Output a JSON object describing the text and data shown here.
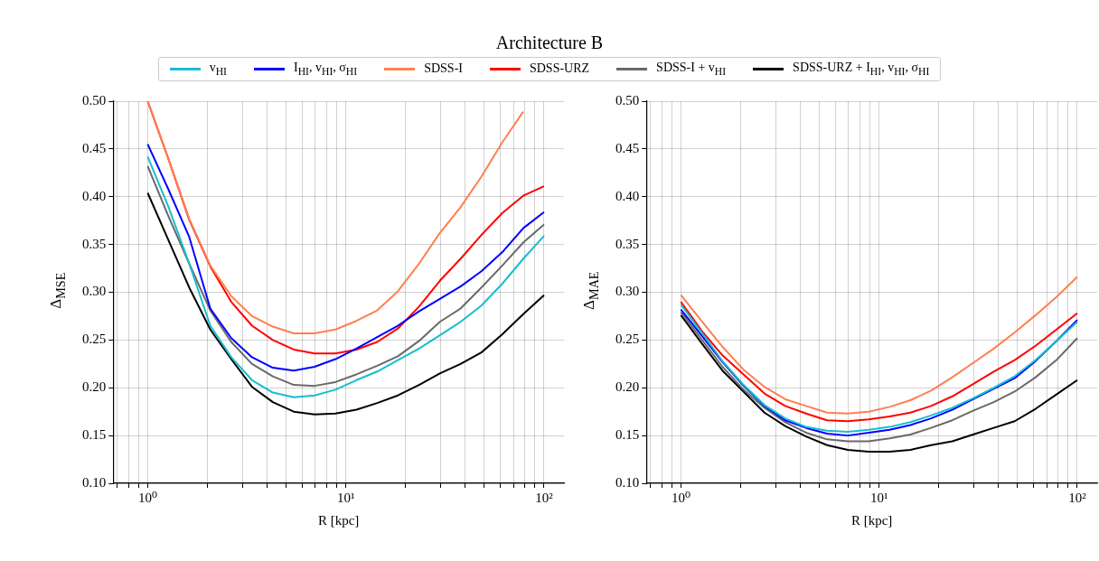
{
  "chart_data": [
    {
      "type": "line",
      "title": "Architecture B",
      "xlabel": "R [kpc]",
      "ylabel": "Δ$_{MSE}$",
      "log": "x",
      "grid": true,
      "legend": "top",
      "line_style": "solid",
      "marker": "none",
      "x": [
        1,
        1.27,
        1.62,
        2.07,
        2.64,
        3.36,
        4.28,
        5.46,
        6.95,
        8.86,
        11.3,
        14.4,
        18.3,
        23.4,
        29.8,
        37.9,
        48.3,
        61.6,
        78.5,
        100
      ],
      "xlim": [
        0.67,
        126
      ],
      "xticks": [
        {
          "value": 0.7,
          "label": null
        },
        {
          "value": 0.8,
          "label": null
        },
        {
          "value": 0.9,
          "label": null
        },
        {
          "value": 1,
          "label": "10⁰"
        },
        {
          "value": 2,
          "label": null
        },
        {
          "value": 3,
          "label": null
        },
        {
          "value": 4,
          "label": null
        },
        {
          "value": 5,
          "label": null
        },
        {
          "value": 6,
          "label": null
        },
        {
          "value": 7,
          "label": null
        },
        {
          "value": 8,
          "label": null
        },
        {
          "value": 9,
          "label": null
        },
        {
          "value": 10,
          "label": "10¹"
        },
        {
          "value": 20,
          "label": null
        },
        {
          "value": 30,
          "label": null
        },
        {
          "value": 40,
          "label": null
        },
        {
          "value": 50,
          "label": null
        },
        {
          "value": 60,
          "label": null
        },
        {
          "value": 70,
          "label": null
        },
        {
          "value": 80,
          "label": null
        },
        {
          "value": 90,
          "label": null
        },
        {
          "value": 100,
          "label": "10²"
        }
      ],
      "ylim": [
        0.1,
        0.5
      ],
      "yticks": [
        {
          "value": 0.1,
          "label": "0.10"
        },
        {
          "value": 0.15,
          "label": "0.15"
        },
        {
          "value": 0.2,
          "label": "0.20"
        },
        {
          "value": 0.25,
          "label": "0.25"
        },
        {
          "value": 0.3,
          "label": "0.30"
        },
        {
          "value": 0.35,
          "label": "0.35"
        },
        {
          "value": 0.4,
          "label": "0.40"
        },
        {
          "value": 0.45,
          "label": "0.45"
        },
        {
          "value": 0.5,
          "label": "0.50"
        }
      ],
      "series": [
        {
          "name": "v$_{HI}$",
          "color": "#17becf",
          "values": [
            0.442,
            0.39,
            0.33,
            0.265,
            0.232,
            0.208,
            0.195,
            0.19,
            0.192,
            0.198,
            0.208,
            0.217,
            0.229,
            0.241,
            0.255,
            0.269,
            0.286,
            0.309,
            0.335,
            0.359
          ]
        },
        {
          "name": "I$_{HI}$, v$_{HI}$, σ$_{HI}$",
          "color": "#0000ff",
          "values": [
            0.455,
            0.408,
            0.358,
            0.283,
            0.252,
            0.232,
            0.221,
            0.218,
            0.222,
            0.23,
            0.241,
            0.253,
            0.265,
            0.28,
            0.293,
            0.306,
            0.322,
            0.342,
            0.367,
            0.384
          ]
        },
        {
          "name": "SDSS-I",
          "color": "#ff7f50",
          "values": [
            0.5,
            0.44,
            0.377,
            0.328,
            0.296,
            0.275,
            0.264,
            0.257,
            0.257,
            0.261,
            0.27,
            0.281,
            0.301,
            0.33,
            0.362,
            0.389,
            0.421,
            0.457,
            0.489,
            null
          ]
        },
        {
          "name": "SDSS-URZ",
          "color": "#ff0000",
          "values": [
            0.5,
            0.44,
            0.376,
            0.327,
            0.29,
            0.265,
            0.25,
            0.24,
            0.236,
            0.236,
            0.24,
            0.248,
            0.262,
            0.285,
            0.312,
            0.335,
            0.36,
            0.383,
            0.401,
            0.411
          ]
        },
        {
          "name": "SDSS-I + v$_{HI}$",
          "color": "#696969",
          "values": [
            0.432,
            0.38,
            0.33,
            0.281,
            0.248,
            0.225,
            0.212,
            0.203,
            0.202,
            0.206,
            0.214,
            0.223,
            0.233,
            0.249,
            0.269,
            0.283,
            0.305,
            0.328,
            0.352,
            0.371
          ]
        },
        {
          "name": "SDSS-URZ + I$_{HI}$, v$_{HI}$, σ$_{HI}$",
          "color": "#000000",
          "values": [
            0.404,
            0.355,
            0.305,
            0.261,
            0.23,
            0.201,
            0.185,
            0.175,
            0.172,
            0.173,
            0.177,
            0.184,
            0.192,
            0.203,
            0.215,
            0.225,
            0.237,
            0.256,
            0.277,
            0.297
          ]
        }
      ]
    },
    {
      "type": "line",
      "xlabel": "R [kpc]",
      "ylabel": "Δ$_{MAE}$",
      "log": "x",
      "grid": true,
      "line_style": "solid",
      "marker": "none",
      "x": [
        1,
        1.27,
        1.62,
        2.07,
        2.64,
        3.36,
        4.28,
        5.46,
        6.95,
        8.86,
        11.3,
        14.4,
        18.3,
        23.4,
        29.8,
        37.9,
        48.3,
        61.6,
        78.5,
        100
      ],
      "xlim": [
        0.67,
        126
      ],
      "xticks": [
        {
          "value": 0.7,
          "label": null
        },
        {
          "value": 0.8,
          "label": null
        },
        {
          "value": 0.9,
          "label": null
        },
        {
          "value": 1,
          "label": "10⁰"
        },
        {
          "value": 2,
          "label": null
        },
        {
          "value": 3,
          "label": null
        },
        {
          "value": 4,
          "label": null
        },
        {
          "value": 5,
          "label": null
        },
        {
          "value": 6,
          "label": null
        },
        {
          "value": 7,
          "label": null
        },
        {
          "value": 8,
          "label": null
        },
        {
          "value": 9,
          "label": null
        },
        {
          "value": 10,
          "label": "10¹"
        },
        {
          "value": 20,
          "label": null
        },
        {
          "value": 30,
          "label": null
        },
        {
          "value": 40,
          "label": null
        },
        {
          "value": 50,
          "label": null
        },
        {
          "value": 60,
          "label": null
        },
        {
          "value": 70,
          "label": null
        },
        {
          "value": 80,
          "label": null
        },
        {
          "value": 90,
          "label": null
        },
        {
          "value": 100,
          "label": "10²"
        }
      ],
      "ylim": [
        0.1,
        0.5
      ],
      "yticks": [
        {
          "value": 0.1,
          "label": "0.10"
        },
        {
          "value": 0.15,
          "label": "0.15"
        },
        {
          "value": 0.2,
          "label": "0.20"
        },
        {
          "value": 0.25,
          "label": "0.25"
        },
        {
          "value": 0.3,
          "label": "0.30"
        },
        {
          "value": 0.35,
          "label": "0.35"
        },
        {
          "value": 0.4,
          "label": "0.40"
        },
        {
          "value": 0.45,
          "label": "0.45"
        },
        {
          "value": 0.5,
          "label": "0.50"
        }
      ],
      "series": [
        {
          "color": "#17becf",
          "values": [
            0.287,
            0.258,
            0.228,
            0.203,
            0.182,
            0.168,
            0.159,
            0.155,
            0.154,
            0.156,
            0.159,
            0.164,
            0.171,
            0.179,
            0.189,
            0.2,
            0.212,
            0.229,
            0.249,
            0.269
          ]
        },
        {
          "color": "#0000ff",
          "values": [
            0.282,
            0.255,
            0.227,
            0.202,
            0.181,
            0.166,
            0.158,
            0.152,
            0.15,
            0.153,
            0.156,
            0.161,
            0.168,
            0.177,
            0.188,
            0.199,
            0.21,
            0.228,
            0.249,
            0.271
          ]
        },
        {
          "color": "#ff7f50",
          "values": [
            0.297,
            0.27,
            0.243,
            0.219,
            0.201,
            0.188,
            0.181,
            0.174,
            0.173,
            0.175,
            0.18,
            0.187,
            0.197,
            0.211,
            0.226,
            0.241,
            0.258,
            0.276,
            0.295,
            0.316
          ]
        },
        {
          "color": "#ff0000",
          "values": [
            0.29,
            0.26,
            0.234,
            0.214,
            0.194,
            0.181,
            0.173,
            0.166,
            0.165,
            0.167,
            0.17,
            0.174,
            0.181,
            0.191,
            0.204,
            0.217,
            0.229,
            0.244,
            0.261,
            0.278
          ]
        },
        {
          "color": "#696969",
          "values": [
            0.279,
            0.251,
            0.222,
            0.198,
            0.179,
            0.164,
            0.153,
            0.146,
            0.144,
            0.144,
            0.147,
            0.151,
            0.158,
            0.166,
            0.176,
            0.185,
            0.196,
            0.211,
            0.229,
            0.252
          ]
        },
        {
          "color": "#000000",
          "values": [
            0.276,
            0.247,
            0.218,
            0.196,
            0.174,
            0.16,
            0.149,
            0.14,
            0.135,
            0.133,
            0.133,
            0.135,
            0.14,
            0.144,
            0.151,
            0.158,
            0.165,
            0.178,
            0.193,
            0.208
          ]
        }
      ]
    }
  ]
}
